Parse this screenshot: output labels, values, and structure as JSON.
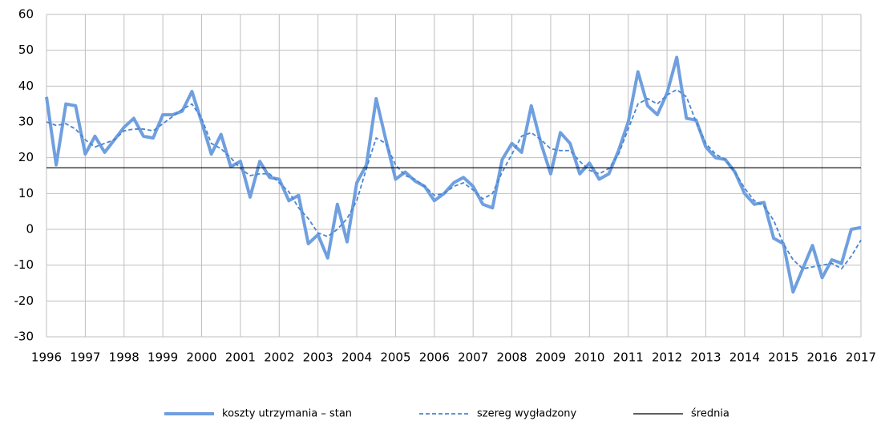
{
  "chart_data": {
    "type": "line",
    "x": [
      1996,
      1996.25,
      1996.5,
      1996.75,
      1997,
      1997.25,
      1997.5,
      1997.75,
      1998,
      1998.25,
      1998.5,
      1998.75,
      1999,
      1999.25,
      1999.5,
      1999.75,
      2000,
      2000.25,
      2000.5,
      2000.75,
      2001,
      2001.25,
      2001.5,
      2001.75,
      2002,
      2002.25,
      2002.5,
      2002.75,
      2003,
      2003.25,
      2003.5,
      2003.75,
      2004,
      2004.25,
      2004.5,
      2004.75,
      2005,
      2005.25,
      2005.5,
      2005.75,
      2006,
      2006.25,
      2006.5,
      2006.75,
      2007,
      2007.25,
      2007.5,
      2007.75,
      2008,
      2008.25,
      2008.5,
      2008.75,
      2009,
      2009.25,
      2009.5,
      2009.75,
      2010,
      2010.25,
      2010.5,
      2010.75,
      2011,
      2011.25,
      2011.5,
      2011.75,
      2012,
      2012.25,
      2012.5,
      2012.75,
      2013,
      2013.25,
      2013.5,
      2013.75,
      2014,
      2014.25,
      2014.5,
      2014.75,
      2015,
      2015.25,
      2015.5,
      2015.75,
      2016,
      2016.25,
      2016.5,
      2016.75,
      2017
    ],
    "series": [
      {
        "name": "koszty utrzymania – stan",
        "color": "#6f9fdf",
        "values": [
          37,
          18,
          35,
          34.5,
          21,
          26,
          21.5,
          25,
          28.5,
          31,
          26,
          25.5,
          32,
          32,
          33,
          38.5,
          30,
          21,
          26.5,
          17.5,
          19,
          9,
          19,
          14.5,
          14,
          8,
          9.5,
          -4,
          -1.5,
          -8,
          7,
          -3.5,
          13,
          18,
          36.5,
          25,
          14,
          16,
          13.5,
          12,
          8,
          10,
          13,
          14.5,
          12,
          7,
          6,
          19.5,
          24,
          21.5,
          34.5,
          24,
          15.5,
          27,
          24,
          15.5,
          18.5,
          14,
          15.5,
          22,
          30,
          44,
          34.5,
          32,
          38,
          48,
          31,
          30.5,
          23,
          20,
          19.5,
          16,
          10,
          7,
          7.5,
          -2.5,
          -4,
          -17.5,
          -11,
          -4.5,
          -13.5,
          -8.5,
          -9.5,
          0,
          0.5
        ]
      },
      {
        "name": "szereg wygładzony",
        "color": "#4a86d0",
        "dashed": true,
        "values": [
          30,
          29,
          29.5,
          28,
          25,
          23,
          24,
          25,
          27.5,
          28,
          28,
          27.5,
          29.5,
          31.5,
          33.5,
          35,
          31,
          24,
          22.5,
          20,
          17,
          15,
          15.5,
          15.5,
          13,
          10.5,
          6,
          3,
          -1,
          -2,
          0,
          3,
          8,
          17,
          25.5,
          24,
          18,
          15,
          14,
          12,
          9.5,
          10,
          12,
          13,
          11,
          8.5,
          10,
          16,
          21,
          26,
          27,
          25,
          22.5,
          22,
          22,
          19,
          16.5,
          15.5,
          17,
          21,
          28,
          35,
          36.5,
          35,
          37.5,
          39,
          37,
          30,
          24,
          21,
          19.5,
          16,
          11.5,
          8,
          6.5,
          2.5,
          -4,
          -8.5,
          -11,
          -10.5,
          -10,
          -9.5,
          -11,
          -7.5,
          -3
        ]
      }
    ],
    "reference_line": {
      "name": "średnia",
      "color": "#000000",
      "value": 17.2
    },
    "xlim": [
      1996,
      2017
    ],
    "xticks": [
      1996,
      1997,
      1998,
      1999,
      2000,
      2001,
      2002,
      2003,
      2004,
      2005,
      2006,
      2007,
      2008,
      2009,
      2010,
      2011,
      2012,
      2013,
      2014,
      2015,
      2016,
      2017
    ],
    "ylim": [
      -30,
      60
    ],
    "yticks": [
      -30,
      -20,
      -10,
      0,
      10,
      20,
      30,
      40,
      50,
      60
    ],
    "grid": true,
    "legend": "bottom"
  }
}
